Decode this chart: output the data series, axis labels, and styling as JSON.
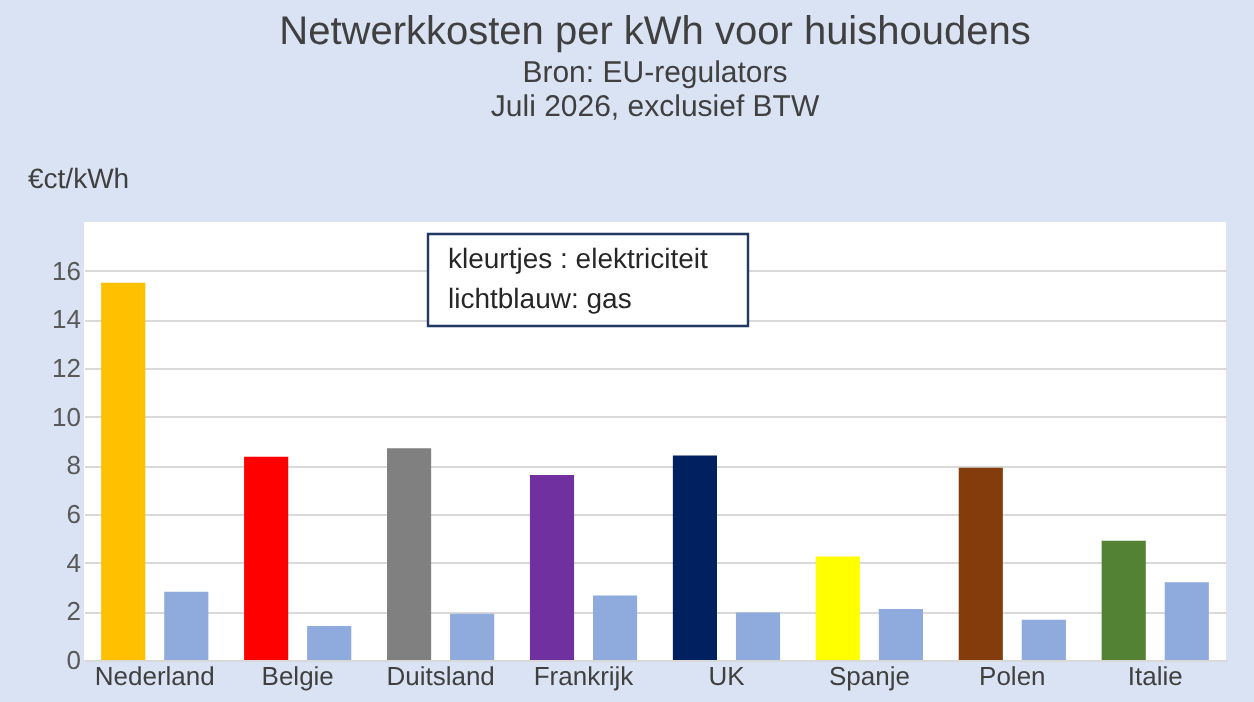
{
  "chart_data": {
    "type": "bar",
    "title": "Netwerkkosten per kWh voor huishoudens",
    "subtitle": [
      "Bron: EU-regulators",
      "Juli 2026, exclusief BTW"
    ],
    "ylabel": "€ct/kWh",
    "categories": [
      "Nederland",
      "Belgie",
      "Duitsland",
      "Frankrijk",
      "UK",
      "Spanje",
      "Polen",
      "Italie"
    ],
    "series": [
      {
        "colors": [
          "#ffc000",
          "#ff0000",
          "#808080",
          "#7030a0",
          "#002060",
          "#ffff00",
          "#843c0c",
          "#548235"
        ],
        "values": [
          15.5,
          8.35,
          8.7,
          7.6,
          8.4,
          4.25,
          7.9,
          4.9
        ]
      },
      {
        "color": "#8faadc",
        "values": [
          2.8,
          1.4,
          1.9,
          2.65,
          1.95,
          2.1,
          1.65,
          3.2
        ]
      }
    ],
    "annotations": [
      "kleurtjes   : elektriciteit",
      "lichtblauw: gas"
    ],
    "ylim": [
      0,
      18
    ],
    "yticks": [
      0,
      2,
      4,
      6,
      8,
      10,
      12,
      14,
      16
    ],
    "grid": "y"
  }
}
